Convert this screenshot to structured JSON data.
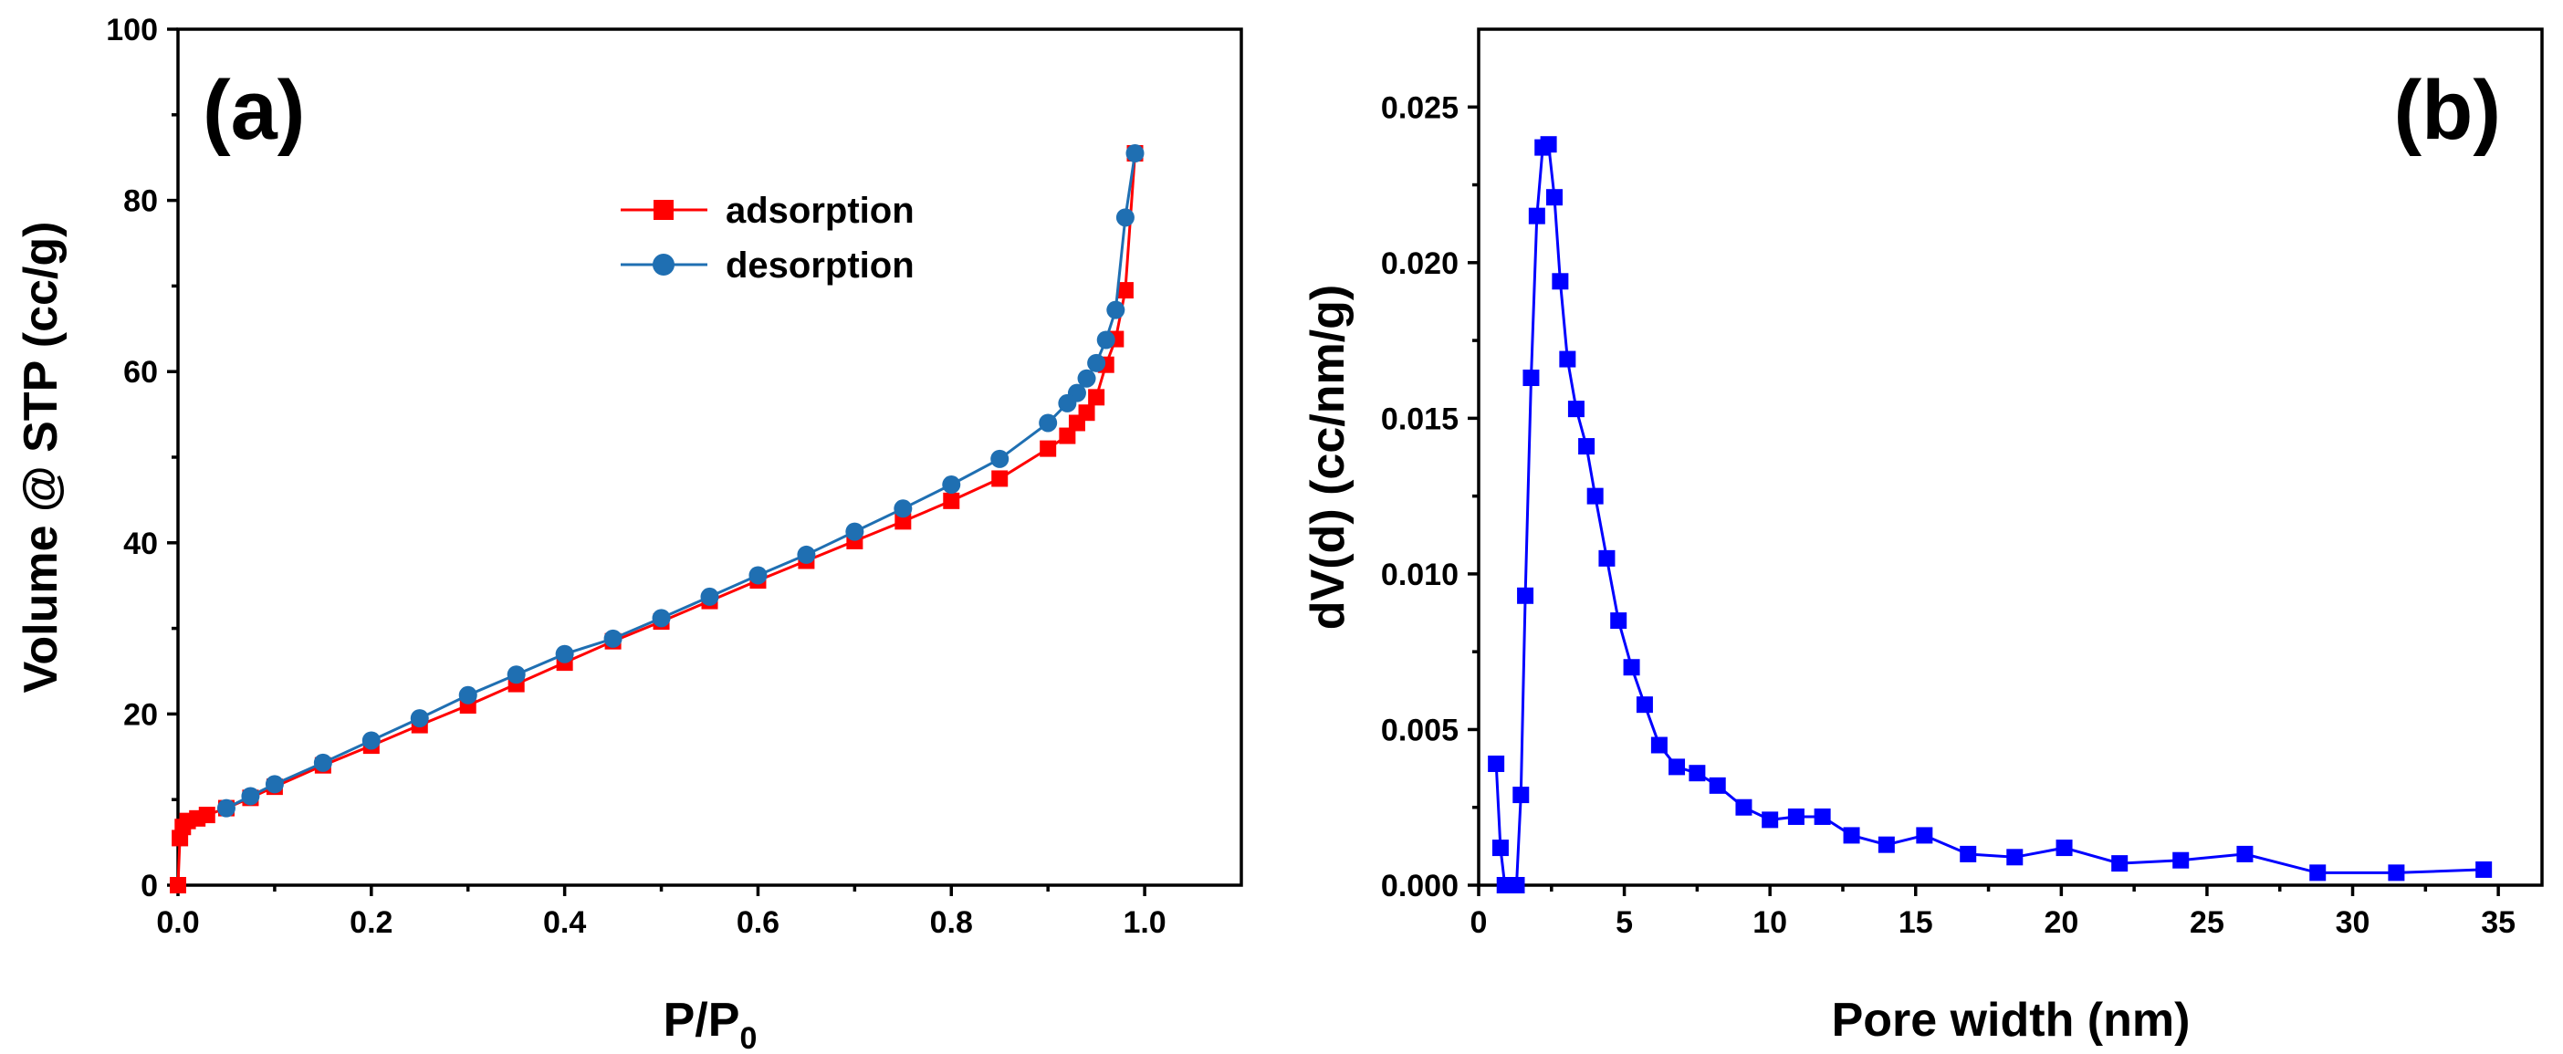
{
  "colors": {
    "adsorption": "#ff0000",
    "desorption": "#1f6fb2",
    "pore": "#0000ff",
    "axis": "#000000"
  },
  "chart_data": [
    {
      "id": "a",
      "type": "line",
      "panel_label": "(a)",
      "xlabel_main": "P/P",
      "xlabel_sub": "0",
      "ylabel": "Volume @ STP (cc/g)",
      "xlim": [
        0,
        1.1
      ],
      "ylim": [
        0,
        100
      ],
      "xticks": [
        0.0,
        0.2,
        0.4,
        0.6,
        0.8,
        1.0
      ],
      "xtick_labels": [
        "0.0",
        "0.2",
        "0.4",
        "0.6",
        "0.8",
        "1.0"
      ],
      "yticks": [
        0,
        20,
        40,
        60,
        80,
        100
      ],
      "ytick_labels": [
        "0",
        "20",
        "40",
        "60",
        "80",
        "100"
      ],
      "legend_position": "top-center",
      "series": [
        {
          "name": "adsorption",
          "marker": "square",
          "x": [
            0.0,
            0.002,
            0.005,
            0.01,
            0.02,
            0.03,
            0.05,
            0.075,
            0.1,
            0.15,
            0.2,
            0.25,
            0.3,
            0.35,
            0.4,
            0.45,
            0.5,
            0.55,
            0.6,
            0.65,
            0.7,
            0.75,
            0.8,
            0.85,
            0.9,
            0.92,
            0.93,
            0.94,
            0.95,
            0.96,
            0.97,
            0.98,
            0.99
          ],
          "y": [
            0.0,
            5.5,
            6.8,
            7.5,
            7.8,
            8.2,
            9.0,
            10.2,
            11.5,
            14.0,
            16.3,
            18.7,
            21.0,
            23.5,
            26.0,
            28.5,
            30.8,
            33.2,
            35.6,
            37.9,
            40.2,
            42.5,
            44.9,
            47.5,
            51.0,
            52.5,
            54.0,
            55.2,
            57.0,
            60.8,
            63.8,
            69.5,
            85.5
          ]
        },
        {
          "name": "desorption",
          "marker": "circle",
          "x": [
            0.99,
            0.98,
            0.97,
            0.96,
            0.95,
            0.94,
            0.93,
            0.92,
            0.9,
            0.85,
            0.8,
            0.75,
            0.7,
            0.65,
            0.6,
            0.55,
            0.5,
            0.45,
            0.4,
            0.35,
            0.3,
            0.25,
            0.2,
            0.15,
            0.1,
            0.075,
            0.05
          ],
          "y": [
            85.5,
            78.0,
            67.2,
            63.7,
            61.0,
            59.2,
            57.5,
            56.3,
            54.0,
            49.8,
            46.8,
            44.0,
            41.3,
            38.6,
            36.2,
            33.7,
            31.2,
            28.8,
            27.0,
            24.6,
            22.2,
            19.5,
            16.9,
            14.3,
            11.8,
            10.4,
            9.0
          ]
        }
      ]
    },
    {
      "id": "b",
      "type": "line",
      "panel_label": "(b)",
      "xlabel": "Pore width (nm)",
      "ylabel": "dV(d) (cc/nm/g)",
      "xlim": [
        0,
        36.5
      ],
      "ylim": [
        0,
        0.0275
      ],
      "xticks": [
        0,
        5,
        10,
        15,
        20,
        25,
        30,
        35
      ],
      "xtick_labels": [
        "0",
        "5",
        "10",
        "15",
        "20",
        "25",
        "30",
        "35"
      ],
      "yticks": [
        0.0,
        0.005,
        0.01,
        0.015,
        0.02,
        0.025
      ],
      "ytick_labels": [
        "0.000",
        "0.005",
        "0.010",
        "0.015",
        "0.020",
        "0.025"
      ],
      "series": [
        {
          "name": "dV(d)",
          "marker": "square",
          "x": [
            0.6,
            0.75,
            0.9,
            1.1,
            1.3,
            1.45,
            1.6,
            1.8,
            2.0,
            2.2,
            2.4,
            2.6,
            2.8,
            3.05,
            3.35,
            3.7,
            4.0,
            4.4,
            4.8,
            5.25,
            5.7,
            6.2,
            6.8,
            7.5,
            8.2,
            9.1,
            10.0,
            10.9,
            11.8,
            12.8,
            14.0,
            15.3,
            16.8,
            18.4,
            20.1,
            22.0,
            24.1,
            26.3,
            28.8,
            31.5,
            34.5
          ],
          "y": [
            0.0039,
            0.0012,
            0.0,
            0.0,
            0.0,
            0.0029,
            0.0093,
            0.0163,
            0.0215,
            0.0237,
            0.0238,
            0.0221,
            0.0194,
            0.0169,
            0.0153,
            0.0141,
            0.0125,
            0.0105,
            0.0085,
            0.007,
            0.0058,
            0.0045,
            0.0038,
            0.0036,
            0.0032,
            0.0025,
            0.0021,
            0.0022,
            0.0022,
            0.0016,
            0.0013,
            0.0016,
            0.001,
            0.0009,
            0.0012,
            0.0007,
            0.0008,
            0.001,
            0.0004,
            0.0004,
            0.0005
          ]
        }
      ]
    }
  ]
}
